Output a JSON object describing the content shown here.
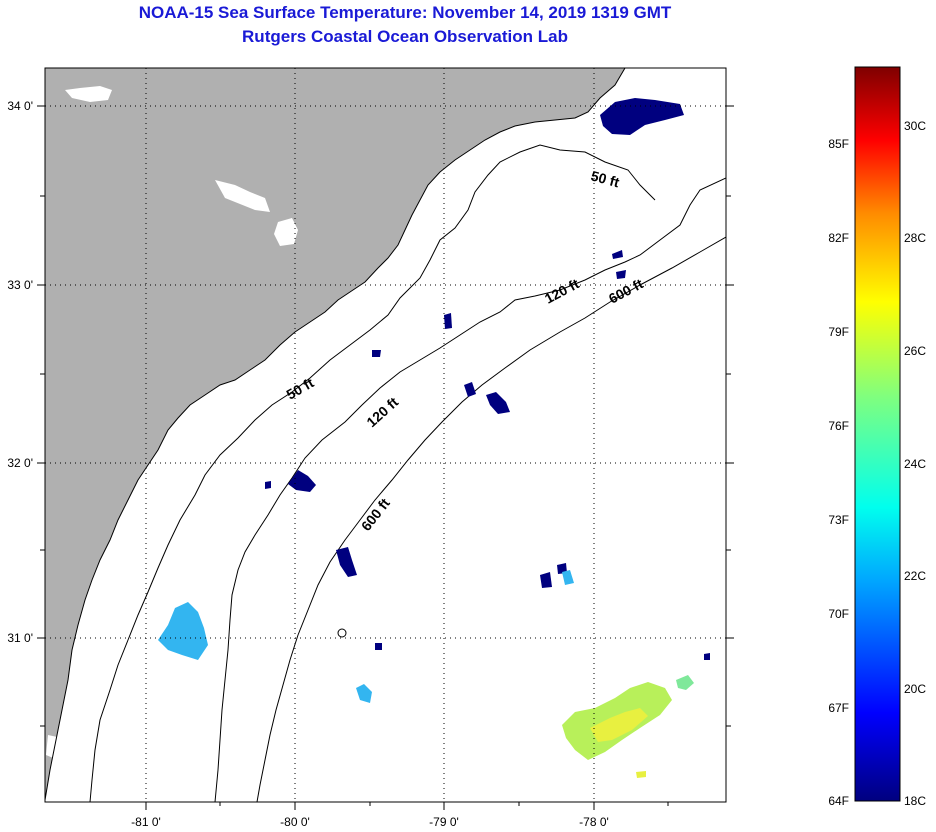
{
  "header": {
    "title": "NOAA-15 Sea Surface Temperature:  November 14, 2019 1319 GMT",
    "subtitle": "Rutgers Coastal Ocean Observation Lab"
  },
  "map": {
    "lat_ticks": [
      {
        "label": "34 0'",
        "value": 34.0
      },
      {
        "label": "33 0'",
        "value": 33.0
      },
      {
        "label": "32 0'",
        "value": 32.0
      },
      {
        "label": "31 0'",
        "value": 31.0
      }
    ],
    "lon_ticks": [
      {
        "label": "-81 0'",
        "value": -81.0
      },
      {
        "label": "-80 0'",
        "value": -80.0
      },
      {
        "label": "-79 0'",
        "value": -79.0
      },
      {
        "label": "-78 0'",
        "value": -78.0
      }
    ],
    "isobath_labels": [
      {
        "text": "50 ft",
        "lon": -77.9,
        "lat": 33.6
      },
      {
        "text": "120 ft",
        "lon": -78.2,
        "lat": 32.97
      },
      {
        "text": "600 ft",
        "lon": -77.6,
        "lat": 33.0
      },
      {
        "text": "50 ft",
        "lon": -79.9,
        "lat": 32.4
      },
      {
        "text": "120 ft",
        "lon": -79.3,
        "lat": 32.3
      },
      {
        "text": "600 ft",
        "lon": -79.4,
        "lat": 31.6
      }
    ]
  },
  "colorbar": {
    "f_labels": [
      "85F",
      "82F",
      "79F",
      "76F",
      "73F",
      "70F",
      "67F",
      "64F"
    ],
    "c_labels": [
      "30C",
      "28C",
      "26C",
      "24C",
      "22C",
      "20C",
      "18C"
    ],
    "colors": {
      "land": "#b0b0b0",
      "cloud": "#ffffff",
      "sst_cold": "#00007f",
      "sst_warm": "#7f0000"
    }
  }
}
